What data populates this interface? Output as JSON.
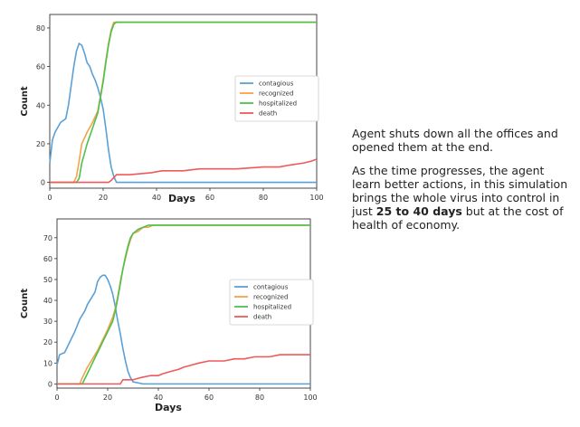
{
  "description": {
    "paragraph1": "Agent shuts down all the offices and opened them at the end.",
    "paragraph2_prefix": "As the time progresses, the agent learn better actions, in this simulation brings the whole virus into control in just ",
    "paragraph2_bold": "25 to 40 days",
    "paragraph2_suffix": " but at the cost of health of economy."
  },
  "colors": {
    "contagious": "#5aa0d6",
    "recognized": "#f5a24b",
    "hospitalized": "#4cc24c",
    "death": "#ee5a5a"
  },
  "chart_data": [
    {
      "type": "line",
      "xlabel": "Days",
      "ylabel": "Count",
      "xlim": [
        0,
        100
      ],
      "ylim": [
        -3,
        87
      ],
      "xticks": [
        0,
        20,
        40,
        60,
        80,
        100
      ],
      "yticks": [
        0,
        20,
        40,
        60,
        80
      ],
      "legend": "center-right",
      "series": [
        {
          "name": "contagious",
          "color": "#5aa0d6",
          "x": [
            0,
            1,
            2,
            4,
            6,
            7,
            8,
            9,
            10,
            11,
            12,
            13,
            14,
            15,
            16,
            17,
            18,
            19,
            20,
            21,
            22,
            23,
            24,
            25,
            100
          ],
          "y": [
            10,
            22,
            26,
            31,
            33,
            40,
            50,
            60,
            68,
            72,
            71,
            67,
            62,
            60,
            56,
            53,
            49,
            44,
            38,
            28,
            17,
            8,
            3,
            0,
            0
          ]
        },
        {
          "name": "recognized",
          "color": "#f5a24b",
          "x": [
            0,
            9,
            10,
            11,
            12,
            14,
            16,
            18,
            19,
            20,
            21,
            22,
            23,
            24,
            25,
            100
          ],
          "y": [
            0,
            0,
            3,
            11,
            20,
            26,
            31,
            37,
            45,
            53,
            63,
            72,
            79,
            83,
            83,
            83
          ]
        },
        {
          "name": "hospitalized",
          "color": "#4cc24c",
          "x": [
            0,
            10,
            11,
            12,
            14,
            16,
            18,
            19,
            20,
            21,
            22,
            23,
            24,
            25,
            100
          ],
          "y": [
            0,
            0,
            2,
            10,
            20,
            28,
            36,
            44,
            52,
            62,
            71,
            78,
            82,
            83,
            83
          ]
        },
        {
          "name": "death",
          "color": "#ee5a5a",
          "x": [
            0,
            22,
            23,
            25,
            30,
            38,
            42,
            50,
            56,
            70,
            80,
            86,
            90,
            95,
            98,
            100
          ],
          "y": [
            0,
            0,
            1,
            4,
            4,
            5,
            6,
            6,
            7,
            7,
            8,
            8,
            9,
            10,
            11,
            12
          ]
        }
      ]
    },
    {
      "type": "line",
      "xlabel": "Days",
      "ylabel": "Count",
      "xlim": [
        0,
        100
      ],
      "ylim": [
        -2,
        79
      ],
      "xticks": [
        0,
        20,
        40,
        60,
        80,
        100
      ],
      "yticks": [
        0,
        10,
        20,
        30,
        40,
        50,
        60,
        70
      ],
      "legend": "center-right",
      "series": [
        {
          "name": "contagious",
          "color": "#5aa0d6",
          "x": [
            0,
            1,
            3,
            5,
            7,
            8,
            9,
            10,
            11,
            12,
            13,
            14,
            15,
            16,
            17,
            18,
            19,
            20,
            21,
            22,
            23,
            24,
            25,
            26,
            27,
            28,
            29,
            30,
            32,
            34,
            100
          ],
          "y": [
            9,
            14,
            15,
            20,
            25,
            28,
            31,
            33,
            35,
            38,
            40,
            42,
            44,
            49,
            51,
            52,
            52,
            50,
            47,
            43,
            37,
            30,
            24,
            17,
            11,
            6,
            3,
            1,
            0.5,
            0,
            0
          ]
        },
        {
          "name": "recognized",
          "color": "#f5a24b",
          "x": [
            0,
            9,
            10,
            12,
            14,
            16,
            18,
            20,
            21,
            22,
            23,
            24,
            25,
            26,
            27,
            28,
            29,
            30,
            32,
            34,
            36,
            38,
            100
          ],
          "y": [
            0,
            0,
            3,
            8,
            12,
            16,
            21,
            26,
            29,
            32,
            36,
            42,
            49,
            55,
            60,
            65,
            69,
            72,
            73,
            75,
            75,
            76,
            76
          ]
        },
        {
          "name": "hospitalized",
          "color": "#4cc24c",
          "x": [
            0,
            10,
            12,
            14,
            16,
            18,
            20,
            22,
            23,
            24,
            25,
            26,
            27,
            28,
            29,
            30,
            32,
            34,
            36,
            38,
            100
          ],
          "y": [
            0,
            0,
            5,
            10,
            15,
            20,
            25,
            30,
            35,
            41,
            48,
            55,
            61,
            66,
            70,
            72,
            74,
            75,
            76,
            76,
            76
          ]
        },
        {
          "name": "death",
          "color": "#ee5a5a",
          "x": [
            0,
            25,
            26,
            30,
            33,
            37,
            40,
            42,
            45,
            48,
            50,
            53,
            56,
            60,
            66,
            70,
            74,
            78,
            84,
            88,
            92,
            100
          ],
          "y": [
            0,
            0,
            2,
            2,
            3,
            4,
            4,
            5,
            6,
            7,
            8,
            9,
            10,
            11,
            11,
            12,
            12,
            13,
            13,
            14,
            14,
            14
          ]
        }
      ]
    }
  ]
}
